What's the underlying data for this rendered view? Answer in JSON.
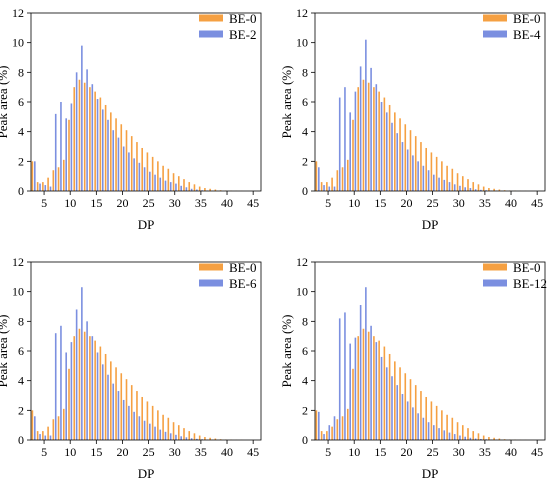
{
  "figure": {
    "title": ""
  },
  "colors": {
    "BE-0": "#f5a042",
    "other": "#7b8fe0",
    "axis": "#000000"
  },
  "chart_data": [
    {
      "type": "bar",
      "xlabel": "DP",
      "ylabel": "Peak area (%)",
      "xlim": [
        2.5,
        46.5
      ],
      "ylim": [
        0,
        12
      ],
      "xticks": [
        5,
        10,
        15,
        20,
        25,
        30,
        35,
        40,
        45
      ],
      "yticks": [
        0,
        2,
        4,
        6,
        8,
        10,
        12
      ],
      "legend_position": "top-right",
      "x": [
        3,
        4,
        5,
        6,
        7,
        8,
        9,
        10,
        11,
        12,
        13,
        14,
        15,
        16,
        17,
        18,
        19,
        20,
        21,
        22,
        23,
        24,
        25,
        26,
        27,
        28,
        29,
        30,
        31,
        32,
        33,
        34,
        35,
        36,
        37,
        38,
        39,
        40,
        41,
        42,
        43,
        44,
        45
      ],
      "series": [
        {
          "name": "BE-0",
          "values": [
            2.0,
            0.6,
            0.6,
            0.9,
            1.4,
            1.6,
            2.1,
            4.8,
            7.0,
            7.5,
            7.3,
            7.0,
            6.7,
            6.3,
            5.8,
            5.3,
            4.9,
            4.5,
            4.1,
            3.7,
            3.3,
            2.9,
            2.6,
            2.3,
            2.0,
            1.7,
            1.5,
            1.2,
            1.0,
            0.8,
            0.6,
            0.45,
            0.3,
            0.2,
            0.15,
            0.1,
            0.05,
            0.03,
            0.02,
            0.01,
            0.01,
            0.0,
            0.0
          ]
        },
        {
          "name": "BE-2",
          "values": [
            2.0,
            0.5,
            0.4,
            0.3,
            5.2,
            6.0,
            4.9,
            5.9,
            8.0,
            9.8,
            8.2,
            7.2,
            6.2,
            5.5,
            4.8,
            4.1,
            3.6,
            3.0,
            2.6,
            2.2,
            1.9,
            1.6,
            1.3,
            1.1,
            0.9,
            0.7,
            0.6,
            0.5,
            0.35,
            0.25,
            0.15,
            0.1,
            0.05,
            0.03,
            0.02,
            0.01,
            0.0,
            0.0,
            0.0,
            0.0,
            0.0,
            0.0,
            0.0
          ]
        }
      ]
    },
    {
      "type": "bar",
      "xlabel": "DP",
      "ylabel": "Peak area (%)",
      "xlim": [
        2.5,
        46.5
      ],
      "ylim": [
        0,
        12
      ],
      "xticks": [
        5,
        10,
        15,
        20,
        25,
        30,
        35,
        40,
        45
      ],
      "yticks": [
        0,
        2,
        4,
        6,
        8,
        10,
        12
      ],
      "legend_position": "top-right",
      "x": [
        3,
        4,
        5,
        6,
        7,
        8,
        9,
        10,
        11,
        12,
        13,
        14,
        15,
        16,
        17,
        18,
        19,
        20,
        21,
        22,
        23,
        24,
        25,
        26,
        27,
        28,
        29,
        30,
        31,
        32,
        33,
        34,
        35,
        36,
        37,
        38,
        39,
        40,
        41,
        42,
        43,
        44,
        45
      ],
      "series": [
        {
          "name": "BE-0",
          "values": [
            2.0,
            0.6,
            0.6,
            0.9,
            1.4,
            1.6,
            2.1,
            4.8,
            7.0,
            7.5,
            7.3,
            7.0,
            6.7,
            6.3,
            5.8,
            5.3,
            4.9,
            4.5,
            4.1,
            3.7,
            3.3,
            2.9,
            2.6,
            2.3,
            2.0,
            1.7,
            1.5,
            1.2,
            1.0,
            0.8,
            0.6,
            0.45,
            0.3,
            0.2,
            0.15,
            0.1,
            0.05,
            0.03,
            0.02,
            0.01,
            0.01,
            0.0,
            0.0
          ]
        },
        {
          "name": "BE-4",
          "values": [
            1.6,
            0.4,
            0.3,
            0.3,
            6.3,
            7.0,
            5.3,
            6.7,
            8.4,
            10.2,
            8.3,
            7.2,
            6.0,
            5.3,
            4.6,
            3.9,
            3.3,
            2.8,
            2.4,
            2.0,
            1.7,
            1.4,
            1.1,
            0.9,
            0.75,
            0.6,
            0.45,
            0.35,
            0.25,
            0.2,
            0.12,
            0.08,
            0.05,
            0.03,
            0.02,
            0.01,
            0.0,
            0.0,
            0.0,
            0.0,
            0.0,
            0.0,
            0.0
          ]
        }
      ]
    },
    {
      "type": "bar",
      "xlabel": "DP",
      "ylabel": "Peak area (%)",
      "xlim": [
        2.5,
        46.5
      ],
      "ylim": [
        0,
        12
      ],
      "xticks": [
        5,
        10,
        15,
        20,
        25,
        30,
        35,
        40,
        45
      ],
      "yticks": [
        0,
        2,
        4,
        6,
        8,
        10,
        12
      ],
      "legend_position": "top-right",
      "x": [
        3,
        4,
        5,
        6,
        7,
        8,
        9,
        10,
        11,
        12,
        13,
        14,
        15,
        16,
        17,
        18,
        19,
        20,
        21,
        22,
        23,
        24,
        25,
        26,
        27,
        28,
        29,
        30,
        31,
        32,
        33,
        34,
        35,
        36,
        37,
        38,
        39,
        40,
        41,
        42,
        43,
        44,
        45
      ],
      "series": [
        {
          "name": "BE-0",
          "values": [
            2.0,
            0.6,
            0.6,
            0.9,
            1.4,
            1.6,
            2.1,
            4.8,
            7.0,
            7.5,
            7.3,
            7.0,
            6.7,
            6.3,
            5.8,
            5.3,
            4.9,
            4.5,
            4.1,
            3.7,
            3.3,
            2.9,
            2.6,
            2.3,
            2.0,
            1.7,
            1.5,
            1.2,
            1.0,
            0.8,
            0.6,
            0.45,
            0.3,
            0.2,
            0.15,
            0.1,
            0.05,
            0.03,
            0.02,
            0.01,
            0.01,
            0.0,
            0.0
          ]
        },
        {
          "name": "BE-6",
          "values": [
            1.6,
            0.4,
            0.3,
            0.3,
            7.2,
            7.7,
            5.9,
            6.6,
            8.8,
            10.3,
            8.0,
            7.0,
            5.9,
            5.1,
            4.4,
            3.8,
            3.3,
            2.7,
            2.3,
            1.9,
            1.6,
            1.3,
            1.1,
            0.9,
            0.7,
            0.55,
            0.45,
            0.35,
            0.25,
            0.18,
            0.12,
            0.08,
            0.05,
            0.03,
            0.02,
            0.01,
            0.0,
            0.0,
            0.0,
            0.0,
            0.0,
            0.0,
            0.0
          ]
        }
      ]
    },
    {
      "type": "bar",
      "xlabel": "DP",
      "ylabel": "Peak area (%)",
      "xlim": [
        2.5,
        46.5
      ],
      "ylim": [
        0,
        12
      ],
      "xticks": [
        5,
        10,
        15,
        20,
        25,
        30,
        35,
        40,
        45
      ],
      "yticks": [
        0,
        2,
        4,
        6,
        8,
        10,
        12
      ],
      "legend_position": "top-right",
      "x": [
        3,
        4,
        5,
        6,
        7,
        8,
        9,
        10,
        11,
        12,
        13,
        14,
        15,
        16,
        17,
        18,
        19,
        20,
        21,
        22,
        23,
        24,
        25,
        26,
        27,
        28,
        29,
        30,
        31,
        32,
        33,
        34,
        35,
        36,
        37,
        38,
        39,
        40,
        41,
        42,
        43,
        44,
        45
      ],
      "series": [
        {
          "name": "BE-0",
          "values": [
            2.0,
            0.6,
            0.6,
            0.9,
            1.4,
            1.6,
            2.1,
            4.8,
            7.0,
            7.5,
            7.3,
            7.0,
            6.7,
            6.3,
            5.8,
            5.3,
            4.9,
            4.5,
            4.1,
            3.7,
            3.3,
            2.9,
            2.6,
            2.3,
            2.0,
            1.7,
            1.5,
            1.2,
            1.0,
            0.8,
            0.6,
            0.45,
            0.3,
            0.2,
            0.15,
            0.1,
            0.05,
            0.03,
            0.02,
            0.01,
            0.01,
            0.0,
            0.0
          ]
        },
        {
          "name": "BE-12",
          "values": [
            1.9,
            0.4,
            1.0,
            1.6,
            8.2,
            8.6,
            6.5,
            6.9,
            9.1,
            10.3,
            7.7,
            6.6,
            5.6,
            4.9,
            4.3,
            3.7,
            3.1,
            2.6,
            2.2,
            1.8,
            1.5,
            1.2,
            1.0,
            0.8,
            0.65,
            0.5,
            0.4,
            0.3,
            0.22,
            0.15,
            0.1,
            0.07,
            0.05,
            0.03,
            0.02,
            0.01,
            0.0,
            0.0,
            0.0,
            0.0,
            0.0,
            0.0,
            0.0
          ]
        }
      ]
    }
  ]
}
